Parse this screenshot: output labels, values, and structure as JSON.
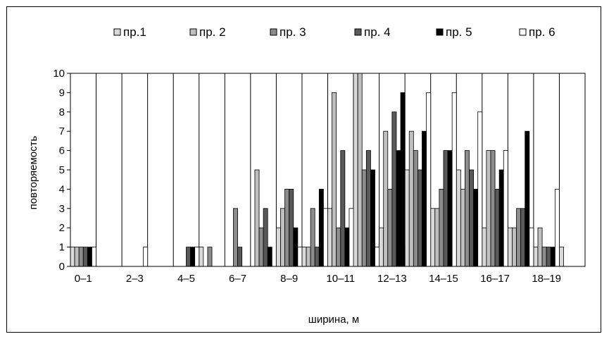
{
  "chart_data": {
    "type": "bar",
    "xlabel": "ширина, м",
    "ylabel": "повторяемость",
    "ylim": [
      0,
      10
    ],
    "yticks": [
      0,
      1,
      2,
      3,
      4,
      5,
      6,
      7,
      8,
      9,
      10
    ],
    "x_tick_labels": [
      "0–1",
      "2–3",
      "4–5",
      "6–7",
      "8–9",
      "10–11",
      "12–13",
      "14–15",
      "16–17",
      "18–19"
    ],
    "categories": [
      "0–1",
      "1–2",
      "2–3",
      "3–4",
      "4–5",
      "5–6",
      "6–7",
      "7–8",
      "8–9",
      "9–10",
      "10–11",
      "11–12",
      "12–13",
      "13–14",
      "14–15",
      "15–16",
      "16–17",
      "17–18",
      "18–19",
      "19–20"
    ],
    "legend_position": "top",
    "grid": "vertical",
    "series": [
      {
        "name": "пр.1",
        "color": "#d9d9d9",
        "values": [
          1,
          0,
          0,
          0,
          0,
          1,
          0,
          0,
          2,
          1,
          3,
          10,
          2,
          5,
          3,
          5,
          2,
          2,
          1,
          1
        ]
      },
      {
        "name": "пр. 2",
        "color": "#bfbfbf",
        "values": [
          1,
          0,
          0,
          0,
          0,
          0,
          0,
          5,
          3,
          1,
          9,
          10,
          7,
          7,
          3,
          4,
          6,
          2,
          2,
          0
        ]
      },
      {
        "name": "пр. 3",
        "color": "#8c8c8c",
        "values": [
          1,
          0,
          0,
          0,
          0,
          1,
          3,
          2,
          4,
          3,
          2,
          5,
          4,
          6,
          4,
          6,
          6,
          3,
          1,
          0
        ]
      },
      {
        "name": "пр. 4",
        "color": "#595959",
        "values": [
          1,
          0,
          0,
          0,
          1,
          0,
          1,
          3,
          4,
          1,
          6,
          6,
          8,
          5,
          6,
          5,
          4,
          3,
          1,
          0
        ]
      },
      {
        "name": "пр. 5",
        "color": "#000000",
        "values": [
          1,
          0,
          0,
          0,
          1,
          0,
          0,
          1,
          2,
          4,
          2,
          5,
          6,
          7,
          6,
          4,
          5,
          7,
          1,
          0
        ]
      },
      {
        "name": "пр. 6",
        "color": "#ffffff",
        "values": [
          1,
          0,
          1,
          0,
          1,
          0,
          0,
          0,
          1,
          3,
          3,
          1,
          1,
          9,
          9,
          8,
          6,
          2,
          4,
          0
        ]
      }
    ],
    "extra_bars": [
      {
        "category_index": 12,
        "series_index": 4,
        "value": 9
      }
    ]
  }
}
